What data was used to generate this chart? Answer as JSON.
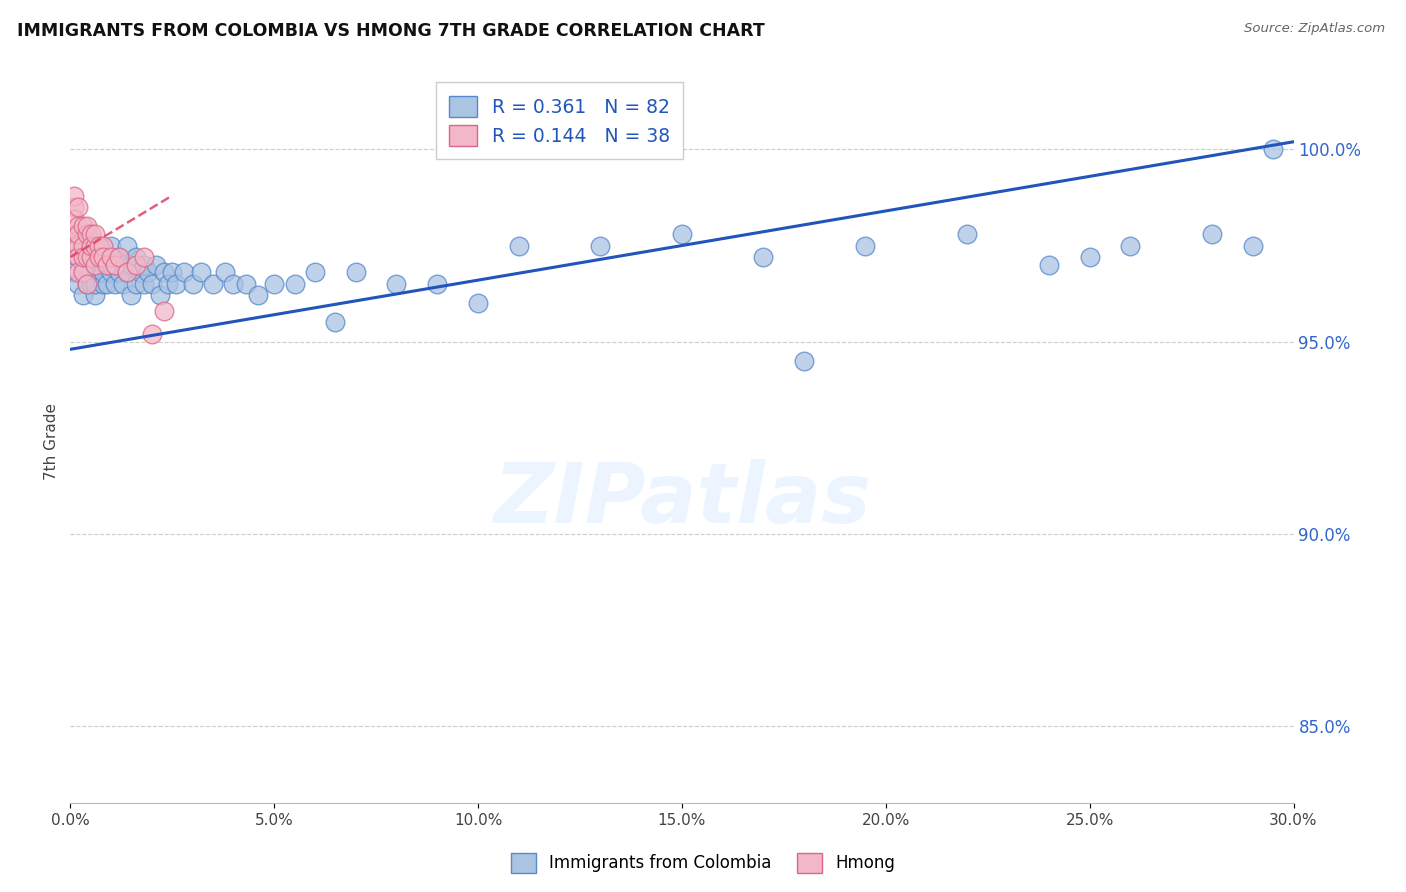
{
  "title": "IMMIGRANTS FROM COLOMBIA VS HMONG 7TH GRADE CORRELATION CHART",
  "source": "Source: ZipAtlas.com",
  "ylabel": "7th Grade",
  "xmin": 0.0,
  "xmax": 0.3,
  "ymin": 83.0,
  "ymax": 101.8,
  "colombia_R": 0.361,
  "colombia_N": 82,
  "hmong_R": 0.144,
  "hmong_N": 38,
  "colombia_color": "#aac4e2",
  "colombia_edge": "#5588cc",
  "hmong_color": "#f2b8c8",
  "hmong_edge": "#dd6688",
  "colombia_line_color": "#2255bb",
  "hmong_line_color": "#dd4466",
  "colombia_line_x": [
    0.0,
    0.3
  ],
  "colombia_line_y": [
    94.8,
    100.2
  ],
  "hmong_line_x": [
    0.0,
    0.025
  ],
  "hmong_line_y": [
    97.2,
    98.8
  ],
  "colombia_scatter_x": [
    0.001,
    0.001,
    0.002,
    0.002,
    0.002,
    0.003,
    0.003,
    0.003,
    0.003,
    0.004,
    0.004,
    0.004,
    0.005,
    0.005,
    0.005,
    0.005,
    0.006,
    0.006,
    0.006,
    0.007,
    0.007,
    0.007,
    0.008,
    0.008,
    0.008,
    0.009,
    0.009,
    0.01,
    0.01,
    0.01,
    0.011,
    0.011,
    0.012,
    0.012,
    0.013,
    0.013,
    0.014,
    0.014,
    0.015,
    0.015,
    0.016,
    0.016,
    0.017,
    0.018,
    0.018,
    0.019,
    0.02,
    0.021,
    0.022,
    0.023,
    0.024,
    0.025,
    0.026,
    0.028,
    0.03,
    0.032,
    0.035,
    0.038,
    0.04,
    0.043,
    0.046,
    0.05,
    0.055,
    0.06,
    0.065,
    0.07,
    0.08,
    0.09,
    0.1,
    0.11,
    0.13,
    0.15,
    0.17,
    0.195,
    0.22,
    0.24,
    0.26,
    0.28,
    0.29,
    0.295,
    0.18,
    0.25
  ],
  "colombia_scatter_y": [
    96.8,
    97.5,
    96.5,
    97.2,
    97.8,
    96.8,
    97.5,
    96.2,
    97.0,
    96.5,
    97.2,
    97.8,
    96.5,
    97.0,
    96.8,
    97.5,
    96.2,
    97.0,
    96.5,
    96.8,
    97.2,
    97.5,
    96.5,
    97.0,
    96.8,
    97.2,
    96.5,
    96.8,
    97.0,
    97.5,
    96.5,
    97.0,
    96.8,
    97.2,
    96.5,
    97.0,
    96.8,
    97.5,
    96.2,
    97.0,
    96.5,
    97.2,
    96.8,
    96.5,
    97.0,
    96.8,
    96.5,
    97.0,
    96.2,
    96.8,
    96.5,
    96.8,
    96.5,
    96.8,
    96.5,
    96.8,
    96.5,
    96.8,
    96.5,
    96.5,
    96.2,
    96.5,
    96.5,
    96.8,
    95.5,
    96.8,
    96.5,
    96.5,
    96.0,
    97.5,
    97.5,
    97.8,
    97.2,
    97.5,
    97.8,
    97.0,
    97.5,
    97.8,
    97.5,
    100.0,
    94.5,
    97.2
  ],
  "hmong_scatter_x": [
    0.001,
    0.001,
    0.001,
    0.001,
    0.001,
    0.002,
    0.002,
    0.002,
    0.002,
    0.002,
    0.002,
    0.003,
    0.003,
    0.003,
    0.003,
    0.004,
    0.004,
    0.004,
    0.004,
    0.005,
    0.005,
    0.005,
    0.006,
    0.006,
    0.006,
    0.007,
    0.007,
    0.008,
    0.008,
    0.009,
    0.01,
    0.011,
    0.012,
    0.014,
    0.016,
    0.018,
    0.02,
    0.023
  ],
  "hmong_scatter_y": [
    98.5,
    97.8,
    98.2,
    97.5,
    98.8,
    97.5,
    98.0,
    97.2,
    98.5,
    96.8,
    97.8,
    97.5,
    98.0,
    96.8,
    97.2,
    97.8,
    97.2,
    98.0,
    96.5,
    97.8,
    97.2,
    97.5,
    97.5,
    97.8,
    97.0,
    97.5,
    97.2,
    97.5,
    97.2,
    97.0,
    97.2,
    97.0,
    97.2,
    96.8,
    97.0,
    97.2,
    95.2,
    95.8
  ],
  "watermark_text": "ZIPatlas",
  "y_ticks": [
    85.0,
    90.0,
    95.0,
    100.0
  ],
  "y_tick_labels": [
    "85.0%",
    "90.0%",
    "95.0%",
    "100.0%"
  ]
}
